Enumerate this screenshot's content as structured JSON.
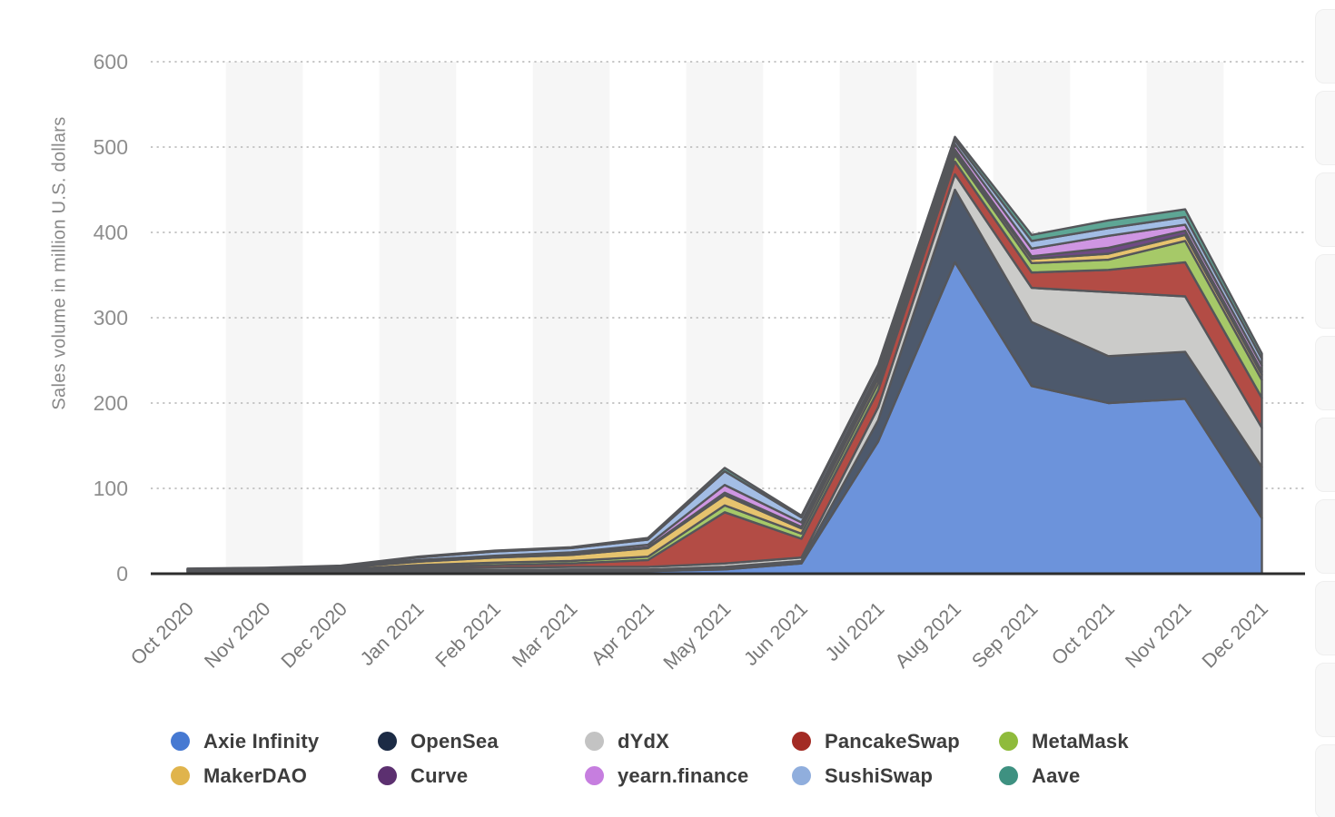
{
  "y_axis": {
    "title": "Sales volume in million U.S. dollars",
    "ticks": [
      0,
      100,
      200,
      300,
      400,
      500,
      600
    ]
  },
  "chart_data": {
    "type": "area",
    "stacked": true,
    "title": "",
    "xlabel": "",
    "ylabel": "Sales volume in million U.S. dollars",
    "ylim": [
      0,
      600
    ],
    "grid": "horizontal-dotted",
    "legend_position": "bottom",
    "categories": [
      "Oct 2020",
      "Nov 2020",
      "Dec 2020",
      "Jan 2021",
      "Feb 2021",
      "Mar 2021",
      "Apr 2021",
      "May 2021",
      "Jun 2021",
      "Jul 2021",
      "Aug 2021",
      "Sep 2021",
      "Oct 2021",
      "Nov 2021",
      "Dec 2021"
    ],
    "series": [
      {
        "name": "Axie Infinity",
        "color": "#4679D2",
        "fill": "#6C93DB",
        "values": [
          1,
          1,
          1,
          2,
          2,
          3,
          3,
          5,
          12,
          155,
          365,
          220,
          200,
          205,
          65
        ]
      },
      {
        "name": "OpenSea",
        "color": "#1C2B45",
        "fill": "#4D596C",
        "values": [
          1,
          1,
          1,
          2,
          2,
          2,
          2,
          3,
          3,
          25,
          85,
          75,
          55,
          55,
          60
        ]
      },
      {
        "name": "dYdX",
        "color": "#C3C3C3",
        "fill": "#CBCBC9",
        "values": [
          1,
          1,
          1,
          2,
          3,
          3,
          3,
          4,
          4,
          15,
          18,
          40,
          75,
          65,
          46
        ]
      },
      {
        "name": "PancakeSwap",
        "color": "#A32B24",
        "fill": "#B34C45",
        "values": [
          0.5,
          1,
          1,
          2,
          3,
          4,
          8,
          60,
          22,
          20,
          15,
          18,
          26,
          40,
          35
        ]
      },
      {
        "name": "MetaMask",
        "color": "#8FBB3C",
        "fill": "#A6C968",
        "values": [
          0.3,
          0.5,
          1,
          2,
          3,
          3,
          4,
          8,
          6,
          8,
          8,
          11,
          12,
          25,
          21
        ]
      },
      {
        "name": "MakerDAO",
        "color": "#E0B44C",
        "fill": "#E6C36E",
        "values": [
          1,
          1,
          2,
          4,
          6,
          7,
          10,
          12,
          6,
          6,
          4,
          5,
          7,
          7,
          6
        ]
      },
      {
        "name": "Curve",
        "color": "#5C3070",
        "fill": "#6F4A84",
        "values": [
          0.2,
          0.3,
          0.5,
          1,
          1,
          1,
          1,
          3,
          2,
          2,
          2,
          3,
          7,
          5,
          4
        ]
      },
      {
        "name": "yearn.finance",
        "color": "#C67EDF",
        "fill": "#CF96E2",
        "values": [
          0.2,
          0.3,
          0.5,
          1,
          1,
          2,
          3,
          9,
          5,
          5,
          6,
          9,
          14,
          7,
          7
        ]
      },
      {
        "name": "SushiSwap",
        "color": "#90AEDD",
        "fill": "#A3BDE5",
        "values": [
          0.5,
          0.5,
          1,
          3,
          5,
          5,
          6,
          16,
          6,
          6,
          5,
          9,
          9,
          9,
          8
        ]
      },
      {
        "name": "Aave",
        "color": "#3E9181",
        "fill": "#5EA695",
        "values": [
          0.3,
          0.4,
          0.5,
          1,
          1,
          1,
          2,
          4,
          2,
          3,
          4,
          7,
          9,
          9,
          6
        ]
      }
    ]
  }
}
